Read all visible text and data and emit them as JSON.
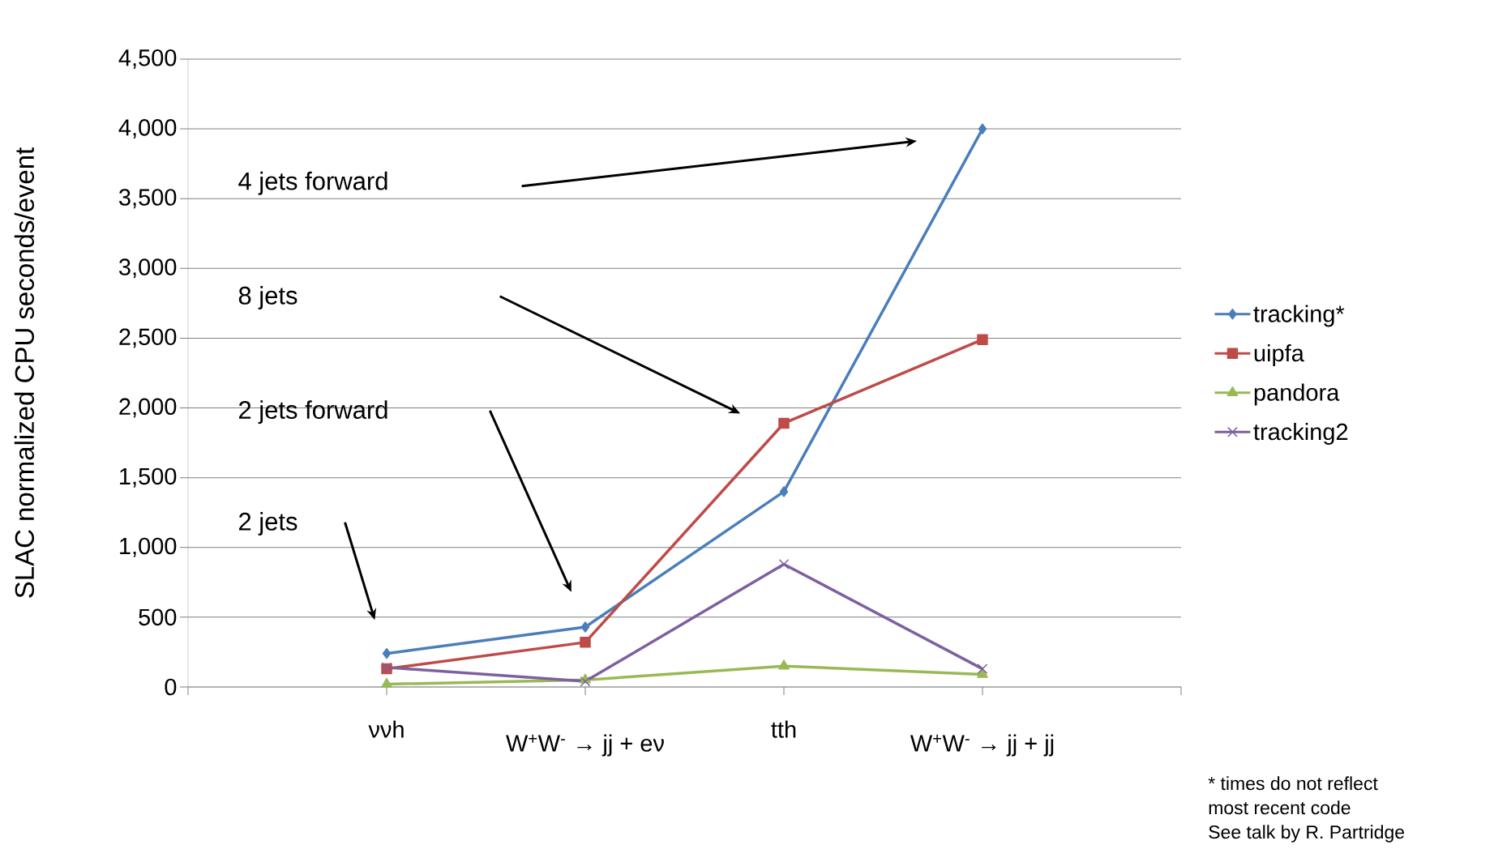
{
  "chart_data": {
    "type": "line",
    "ylabel": "SLAC normalized CPU seconds/event",
    "categories": [
      null,
      "ννh",
      "W$^{+}$W$^{-}$ → jj + eν",
      "tth",
      "W$^{+}$W$^{-}$ → jj + jj",
      null
    ],
    "series": [
      {
        "name": "tracking*",
        "color": "#4a7ebb",
        "marker": "diamond",
        "values": [
          null,
          240,
          430,
          1400,
          4000,
          null
        ]
      },
      {
        "name": "uipfa",
        "color": "#be4b48",
        "marker": "square",
        "values": [
          null,
          130,
          320,
          1890,
          2490,
          null
        ]
      },
      {
        "name": "pandora",
        "color": "#98b954",
        "marker": "triangle",
        "values": [
          null,
          20,
          50,
          150,
          90,
          null
        ]
      },
      {
        "name": "tracking2",
        "color": "#7d60a0",
        "marker": "cross",
        "values": [
          null,
          140,
          40,
          880,
          130,
          null
        ]
      }
    ],
    "ylim": [
      0,
      4500
    ],
    "yticks": [
      {
        "value": 0,
        "label": "0"
      },
      {
        "value": 500,
        "label": "500"
      },
      {
        "value": 1000,
        "label": "1,000"
      },
      {
        "value": 1500,
        "label": "1,500"
      },
      {
        "value": 2000,
        "label": "2,000"
      },
      {
        "value": 2500,
        "label": "2,500"
      },
      {
        "value": 3000,
        "label": "3,000"
      },
      {
        "value": 3500,
        "label": "3,500"
      },
      {
        "value": 4000,
        "label": "4,000"
      },
      {
        "value": 4500,
        "label": "4,500"
      }
    ],
    "grid": "y",
    "legend": "right",
    "line_style": "solid",
    "annotations": [
      "4 jets forward",
      "8 jets",
      "2 jets forward",
      "2 jets",
      "* times do not reflect\nmost recent code\n See talk by R. Partridge"
    ]
  }
}
